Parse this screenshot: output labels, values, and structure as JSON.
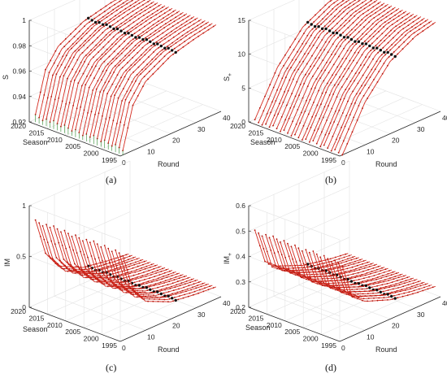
{
  "chart_data": [
    {
      "panel": "(a)",
      "type": "line",
      "zlabel": "S",
      "xlabel": "Round",
      "ylabel": "Season",
      "zlim": [
        0.92,
        1.0
      ],
      "zticks": [
        "0.92",
        "0.94",
        "0.96",
        "0.98",
        "1"
      ],
      "xticks": [
        "0",
        "10",
        "20",
        "30",
        "40"
      ],
      "yticks": [
        "1995",
        "2000",
        "2005",
        "2010",
        "2015",
        "2020"
      ],
      "grid": true,
      "seasons": [
        1995,
        1996,
        1997,
        1998,
        1999,
        2000,
        2001,
        2002,
        2003,
        2004,
        2005,
        2006,
        2007,
        2008,
        2009,
        2010,
        2011,
        2012,
        2013,
        2014,
        2015,
        2016,
        2017,
        2018,
        2019
      ],
      "rounds": [
        1,
        38
      ],
      "curve": {
        "start": 0.925,
        "end": 0.99,
        "trend": "rising, saturating",
        "approx_values": [
          [
            1,
            0.925
          ],
          [
            5,
            0.957
          ],
          [
            10,
            0.971
          ],
          [
            20,
            0.982
          ],
          [
            30,
            0.987
          ],
          [
            38,
            0.99
          ]
        ]
      },
      "marked_round": 22
    },
    {
      "panel": "(b)",
      "type": "line",
      "zlabel": "S",
      "zlabel_subscript": "+",
      "xlabel": "Round",
      "ylabel": "Season",
      "zlim": [
        0,
        15
      ],
      "zticks": [
        "0",
        "5",
        "10",
        "15"
      ],
      "xticks": [
        "0",
        "10",
        "20",
        "30",
        "40"
      ],
      "yticks": [
        "1995",
        "2000",
        "2005",
        "2010",
        "2015",
        "2020"
      ],
      "grid": true,
      "seasons": [
        1995,
        1996,
        1997,
        1998,
        1999,
        2000,
        2001,
        2002,
        2003,
        2004,
        2005,
        2006,
        2007,
        2008,
        2009,
        2010,
        2011,
        2012,
        2013,
        2014,
        2015,
        2016,
        2017,
        2018,
        2019
      ],
      "rounds": [
        1,
        38
      ],
      "curve": {
        "start": 0.2,
        "end": 13.5,
        "trend": "rising, concave",
        "approx_values": [
          [
            1,
            0.2
          ],
          [
            10,
            6.5
          ],
          [
            20,
            10.8
          ],
          [
            30,
            12.8
          ],
          [
            38,
            13.5
          ]
        ]
      },
      "marked_round": 22
    },
    {
      "panel": "(c)",
      "type": "line",
      "zlabel": "IM",
      "xlabel": "Round",
      "ylabel": "Season",
      "zlim": [
        0,
        1
      ],
      "zticks": [
        "0",
        "0.5",
        "1"
      ],
      "xticks": [
        "0",
        "10",
        "20",
        "30",
        "40"
      ],
      "yticks": [
        "1995",
        "2000",
        "2005",
        "2010",
        "2015",
        "2020"
      ],
      "grid": true,
      "seasons": [
        1995,
        1996,
        1997,
        1998,
        1999,
        2000,
        2001,
        2002,
        2003,
        2004,
        2005,
        2006,
        2007,
        2008,
        2009,
        2010,
        2011,
        2012,
        2013,
        2014,
        2015,
        2016,
        2017,
        2018,
        2019
      ],
      "rounds": [
        1,
        38
      ],
      "curve": {
        "start": 0.85,
        "end": 0.12,
        "trend": "falling, convex",
        "approx_values": [
          [
            1,
            0.85
          ],
          [
            5,
            0.48
          ],
          [
            10,
            0.3
          ],
          [
            20,
            0.18
          ],
          [
            30,
            0.14
          ],
          [
            38,
            0.12
          ]
        ]
      },
      "marked_round": 22
    },
    {
      "panel": "(d)",
      "type": "line",
      "zlabel": "IM",
      "zlabel_subscript": "+",
      "xlabel": "Round",
      "ylabel": "Season",
      "zlim": [
        0.2,
        0.6
      ],
      "zticks": [
        "0.2",
        "0.3",
        "0.4",
        "0.5",
        "0.6"
      ],
      "xticks": [
        "0",
        "10",
        "20",
        "30",
        "40"
      ],
      "yticks": [
        "1995",
        "2000",
        "2005",
        "2010",
        "2015",
        "2020"
      ],
      "grid": true,
      "seasons": [
        1995,
        1996,
        1997,
        1998,
        1999,
        2000,
        2001,
        2002,
        2003,
        2004,
        2005,
        2006,
        2007,
        2008,
        2009,
        2010,
        2011,
        2012,
        2013,
        2014,
        2015,
        2016,
        2017,
        2018,
        2019
      ],
      "rounds": [
        1,
        38
      ],
      "curve": {
        "start": 0.5,
        "end": 0.25,
        "trend": "falling, convex",
        "approx_values": [
          [
            1,
            0.5
          ],
          [
            5,
            0.36
          ],
          [
            10,
            0.32
          ],
          [
            20,
            0.28
          ],
          [
            30,
            0.26
          ],
          [
            38,
            0.25
          ]
        ]
      },
      "marked_round": 22
    }
  ],
  "colors": {
    "series": "#d42a1f",
    "points": "#b3170e",
    "drop_lines": "#2e8b2e",
    "markers": "#111111",
    "grid": "#e3e3e3",
    "axes": "#262626"
  }
}
